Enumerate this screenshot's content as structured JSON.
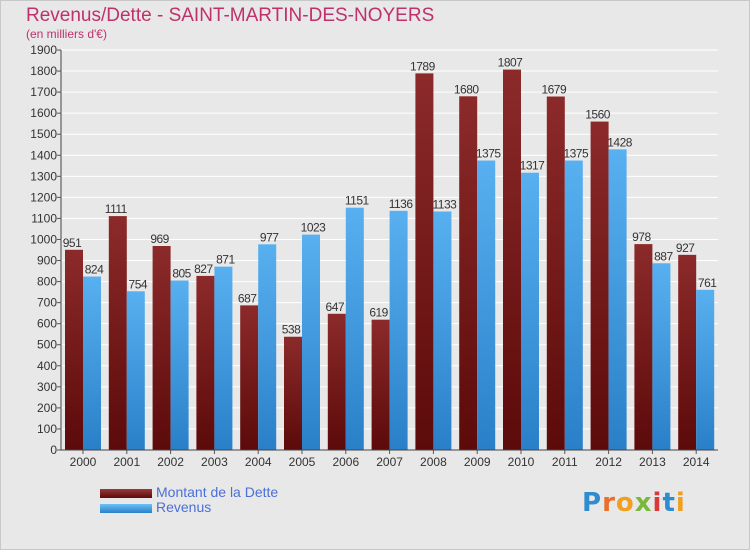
{
  "title": "Revenus/Dette - SAINT-MARTIN-DES-NOYERS",
  "subtitle": "(en milliers d'€)",
  "colors": {
    "dette": "#7b1c1c",
    "revenus": "#4aa3e8",
    "title": "#c0306a",
    "legend_text": "#4a6fd8"
  },
  "legend": [
    {
      "label": "Montant de la Dette",
      "color": "#7b1c1c"
    },
    {
      "label": "Revenus",
      "color": "#4aa3e8"
    }
  ],
  "logo": {
    "text": "Proxiti"
  },
  "chart_data": {
    "type": "bar",
    "categories": [
      "2000",
      "2001",
      "2002",
      "2003",
      "2004",
      "2005",
      "2006",
      "2007",
      "2008",
      "2009",
      "2010",
      "2011",
      "2012",
      "2013",
      "2014"
    ],
    "series": [
      {
        "name": "Montant de la Dette",
        "values": [
          951,
          1111,
          969,
          827,
          687,
          538,
          647,
          619,
          1789,
          1680,
          1807,
          1679,
          1560,
          978,
          927
        ]
      },
      {
        "name": "Revenus",
        "values": [
          824,
          754,
          805,
          871,
          977,
          1023,
          1151,
          1136,
          1133,
          1375,
          1317,
          1375,
          1428,
          887,
          761
        ]
      }
    ],
    "ylim": [
      0,
      1900
    ],
    "yticks": [
      0,
      100,
      200,
      300,
      400,
      500,
      600,
      700,
      800,
      900,
      1000,
      1100,
      1200,
      1300,
      1400,
      1500,
      1600,
      1700,
      1800,
      1900
    ],
    "grid": true,
    "xlabel": "",
    "ylabel": ""
  }
}
